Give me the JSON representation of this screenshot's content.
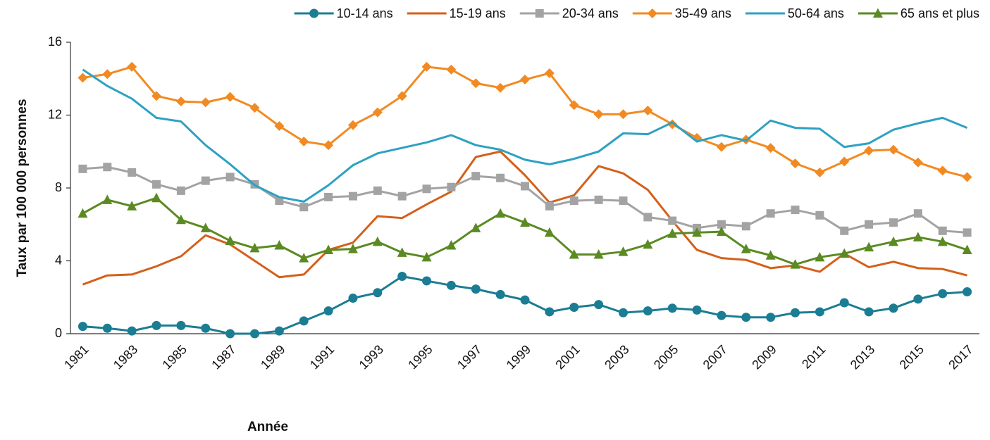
{
  "chart_data": {
    "type": "line",
    "x_label": "Année",
    "y_label": "Taux par 100 000 personnes",
    "categories": [
      "1981",
      null,
      "1983",
      null,
      "1985",
      null,
      "1987",
      null,
      "1989",
      null,
      "1991",
      null,
      "1993",
      null,
      "1995",
      null,
      "1997",
      null,
      "1999",
      null,
      "2001",
      null,
      "2003",
      null,
      "2005",
      null,
      "2007",
      null,
      "2009",
      null,
      "2011",
      null,
      "2013",
      null,
      "2015",
      null,
      "2017"
    ],
    "ylim": [
      0,
      16
    ],
    "yticks": [
      0,
      4,
      8,
      12,
      16
    ],
    "grid": false,
    "legend": "top",
    "series": [
      {
        "name": "10-14 ans",
        "color": "#1b7d93",
        "marker": "circle",
        "values": [
          0.4,
          0.3,
          0.15,
          0.45,
          0.45,
          0.3,
          0,
          0,
          0.15,
          0.7,
          1.25,
          1.95,
          2.25,
          3.15,
          2.9,
          2.65,
          2.45,
          2.15,
          1.85,
          1.2,
          1.45,
          1.6,
          1.15,
          1.25,
          1.4,
          1.3,
          1.0,
          0.9,
          0.9,
          1.15,
          1.2,
          1.7,
          1.2,
          1.4,
          1.9,
          2.2,
          2.3
        ]
      },
      {
        "name": "15-19 ans",
        "color": "#d4601a",
        "marker": "none",
        "values": [
          2.7,
          3.2,
          3.25,
          3.7,
          4.25,
          5.4,
          4.9,
          4.0,
          3.1,
          3.25,
          4.6,
          5.0,
          6.45,
          6.35,
          7.1,
          7.8,
          9.7,
          10.0,
          8.7,
          7.2,
          7.6,
          9.2,
          8.8,
          7.9,
          6.2,
          4.6,
          4.15,
          4.05,
          3.6,
          3.75,
          3.4,
          4.4,
          3.65,
          3.95,
          3.6,
          3.55,
          3.2
        ]
      },
      {
        "name": "20-34 ans",
        "color": "#a3a3a3",
        "marker": "square",
        "values": [
          9.05,
          9.15,
          8.85,
          8.2,
          7.85,
          8.4,
          8.6,
          8.2,
          7.3,
          6.95,
          7.5,
          7.55,
          7.85,
          7.55,
          7.95,
          8.05,
          8.65,
          8.55,
          8.1,
          7.0,
          7.3,
          7.35,
          7.3,
          6.4,
          6.2,
          5.8,
          6.0,
          5.9,
          6.6,
          6.8,
          6.5,
          5.65,
          6.0,
          6.1,
          6.6,
          5.65,
          5.55
        ]
      },
      {
        "name": "35-49 ans",
        "color": "#f28a22",
        "marker": "diamond",
        "values": [
          14.05,
          14.25,
          14.65,
          13.05,
          12.75,
          12.7,
          13.0,
          12.4,
          11.4,
          10.55,
          10.35,
          11.45,
          12.15,
          13.05,
          14.65,
          14.5,
          13.75,
          13.5,
          13.95,
          14.3,
          12.55,
          12.05,
          12.05,
          12.25,
          11.5,
          10.75,
          10.25,
          10.65,
          10.2,
          9.35,
          8.85,
          9.45,
          10.05,
          10.1,
          9.4,
          8.95,
          8.6
        ]
      },
      {
        "name": "50-64 ans",
        "color": "#2ea1c2",
        "marker": "none",
        "values": [
          14.5,
          13.6,
          12.9,
          11.85,
          11.65,
          10.35,
          9.3,
          8.15,
          7.5,
          7.25,
          8.15,
          9.25,
          9.9,
          10.2,
          10.5,
          10.9,
          10.35,
          10.1,
          9.55,
          9.3,
          9.6,
          10.0,
          11.0,
          10.95,
          11.6,
          10.55,
          10.9,
          10.6,
          11.7,
          11.3,
          11.25,
          10.25,
          10.45,
          11.2,
          11.55,
          11.85,
          11.3
        ]
      },
      {
        "name": "65 ans et plus",
        "color": "#5a8a22",
        "marker": "triangle",
        "values": [
          6.6,
          7.35,
          7.0,
          7.45,
          6.25,
          5.8,
          5.1,
          4.7,
          4.85,
          4.15,
          4.6,
          4.65,
          5.05,
          4.45,
          4.2,
          4.85,
          5.8,
          6.6,
          6.1,
          5.55,
          4.35,
          4.35,
          4.5,
          4.9,
          5.5,
          5.55,
          5.6,
          4.65,
          4.3,
          3.8,
          4.2,
          4.4,
          4.75,
          5.05,
          5.3,
          5.05,
          4.6
        ]
      }
    ]
  }
}
